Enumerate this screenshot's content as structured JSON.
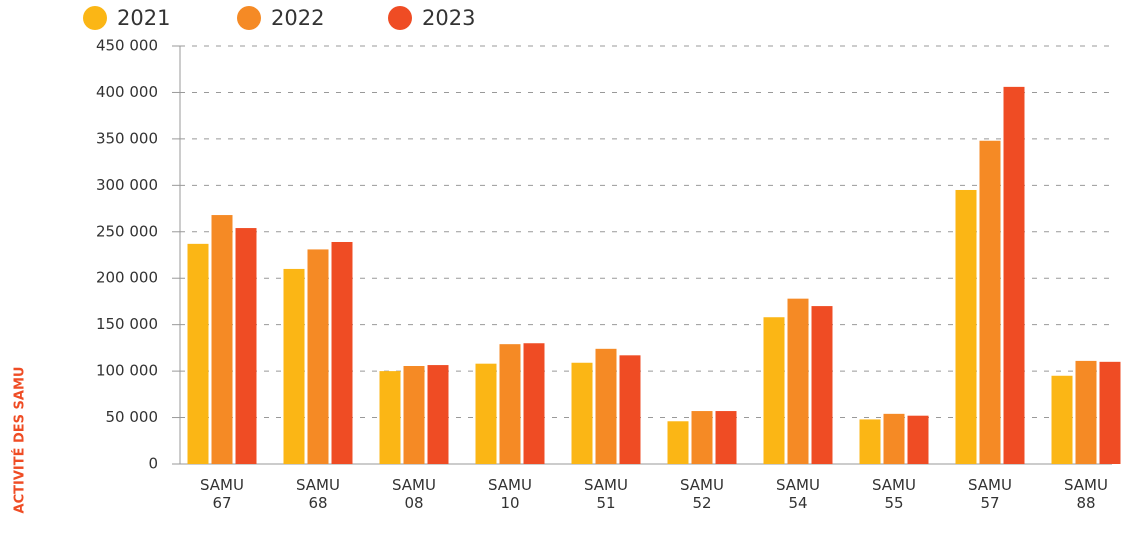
{
  "chart_data": {
    "type": "bar",
    "y_label": "ACTIVITÉ DES SAMU",
    "categories": [
      "SAMU 67",
      "SAMU 68",
      "SAMU 08",
      "SAMU 10",
      "SAMU 51",
      "SAMU 52",
      "SAMU 54",
      "SAMU 55",
      "SAMU 57",
      "SAMU 88"
    ],
    "series": [
      {
        "name": "2021",
        "color": "#fbb615",
        "values": [
          237000,
          210000,
          100000,
          108000,
          109000,
          46000,
          158000,
          48000,
          295000,
          95000
        ]
      },
      {
        "name": "2022",
        "color": "#f58a25",
        "values": [
          268000,
          231000,
          105500,
          129000,
          124000,
          57000,
          178000,
          54000,
          348000,
          111000
        ]
      },
      {
        "name": "2023",
        "color": "#ef4c24",
        "values": [
          254000,
          239000,
          106500,
          130000,
          117000,
          57000,
          170000,
          52000,
          406000,
          110000
        ]
      }
    ],
    "ylim": [
      0,
      450000
    ],
    "yticks": [
      0,
      {
        "value": 50000,
        "label": "50 000"
      },
      {
        "value": 100000,
        "label": "100 000"
      },
      {
        "value": 150000,
        "label": "150 000"
      },
      {
        "value": 200000,
        "label": "200 000"
      },
      {
        "value": 250000,
        "label": "250 000"
      },
      {
        "value": 300000,
        "label": "300 000"
      },
      {
        "value": 350000,
        "label": "350 000"
      },
      {
        "value": 400000,
        "label": "400 000"
      },
      {
        "value": 450000,
        "label": "450 000"
      }
    ],
    "grid": true,
    "legend": "top"
  }
}
